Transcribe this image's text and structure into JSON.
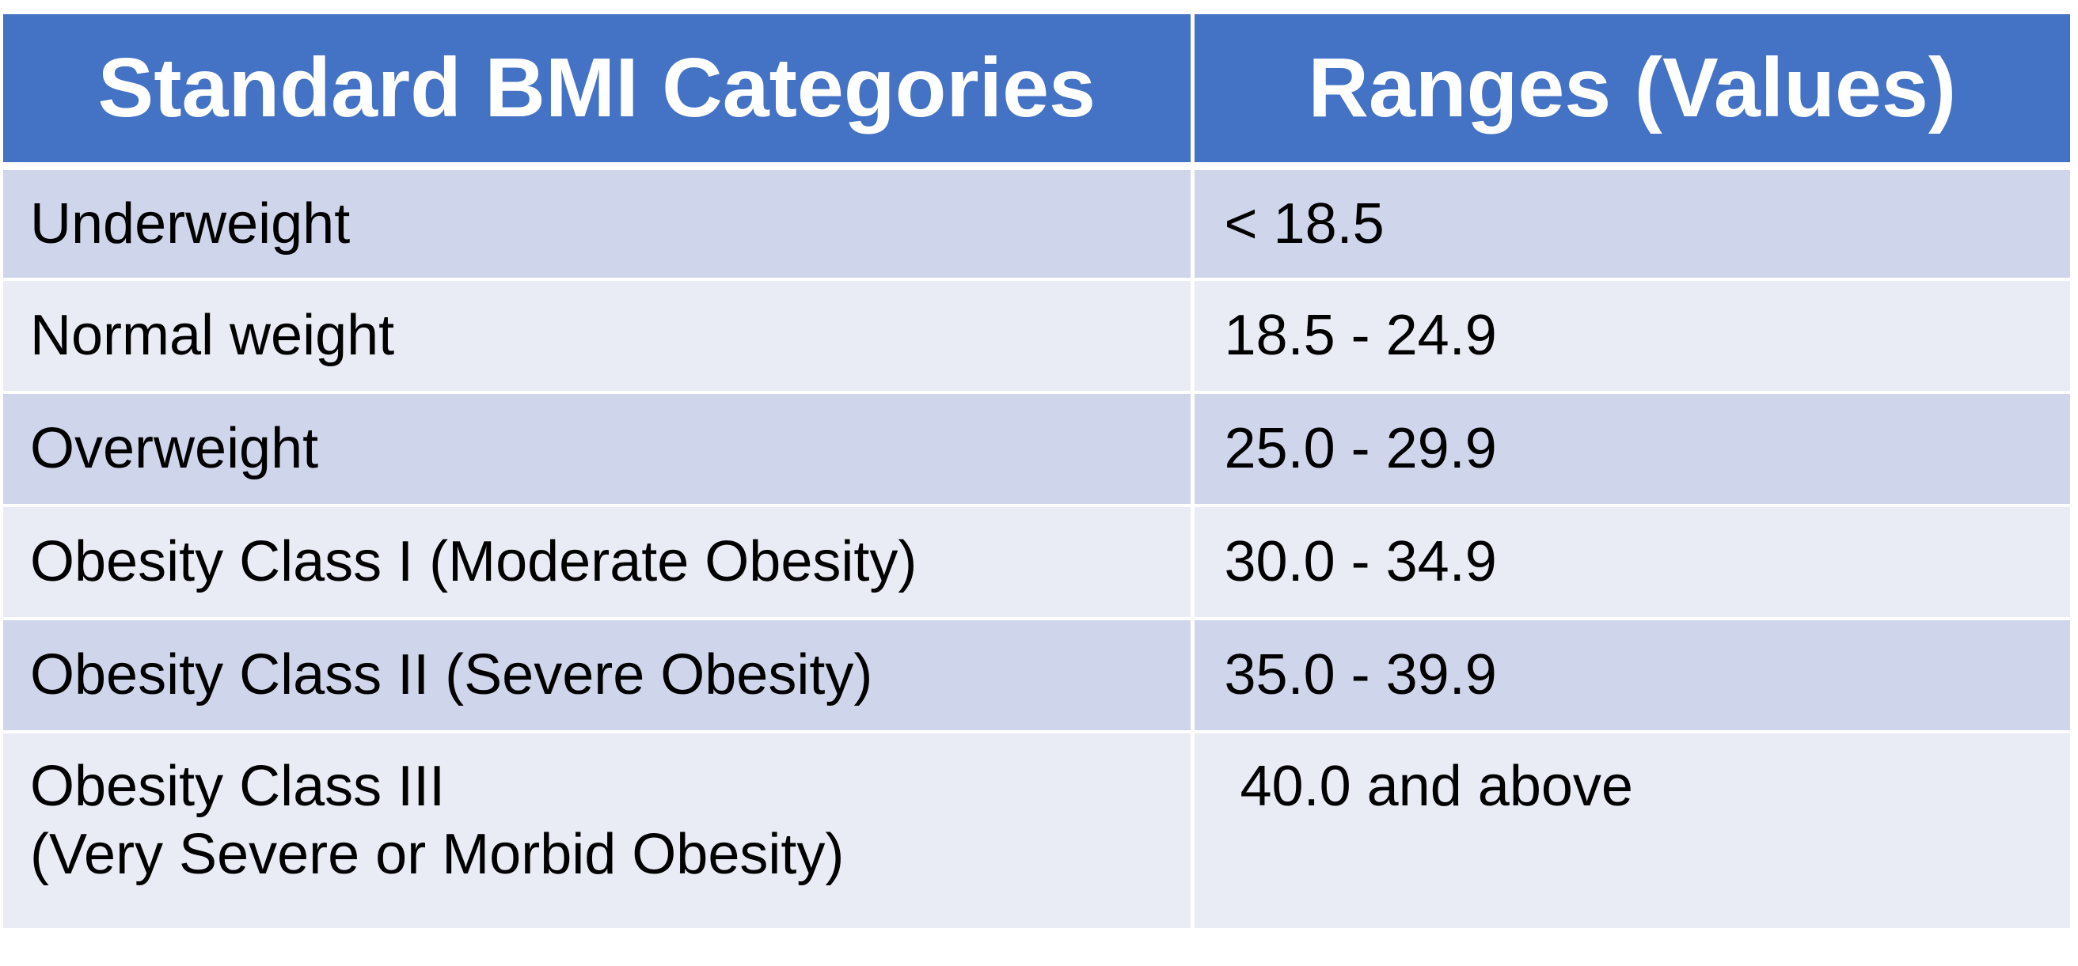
{
  "table": {
    "headers": [
      "Standard BMI Categories",
      "Ranges (Values)"
    ],
    "rows": [
      {
        "category": [
          "Underweight"
        ],
        "range": "< 18.5"
      },
      {
        "category": [
          "Normal weight"
        ],
        "range": "18.5 - 24.9"
      },
      {
        "category": [
          "Overweight"
        ],
        "range": "25.0 - 29.9"
      },
      {
        "category": [
          "Obesity Class I (Moderate Obesity)"
        ],
        "range": "30.0 - 34.9"
      },
      {
        "category": [
          "Obesity Class II (Severe Obesity)"
        ],
        "range": "35.0 - 39.9"
      },
      {
        "category": [
          "Obesity Class III",
          "(Very Severe or Morbid Obesity)"
        ],
        "range": "40.0 and above"
      }
    ]
  },
  "colors": {
    "header_bg": "#4472c4",
    "header_text": "#ffffff",
    "row_odd_bg": "#cfd5ea",
    "row_even_bg": "#e9ebf5",
    "cell_text": "#000000"
  }
}
